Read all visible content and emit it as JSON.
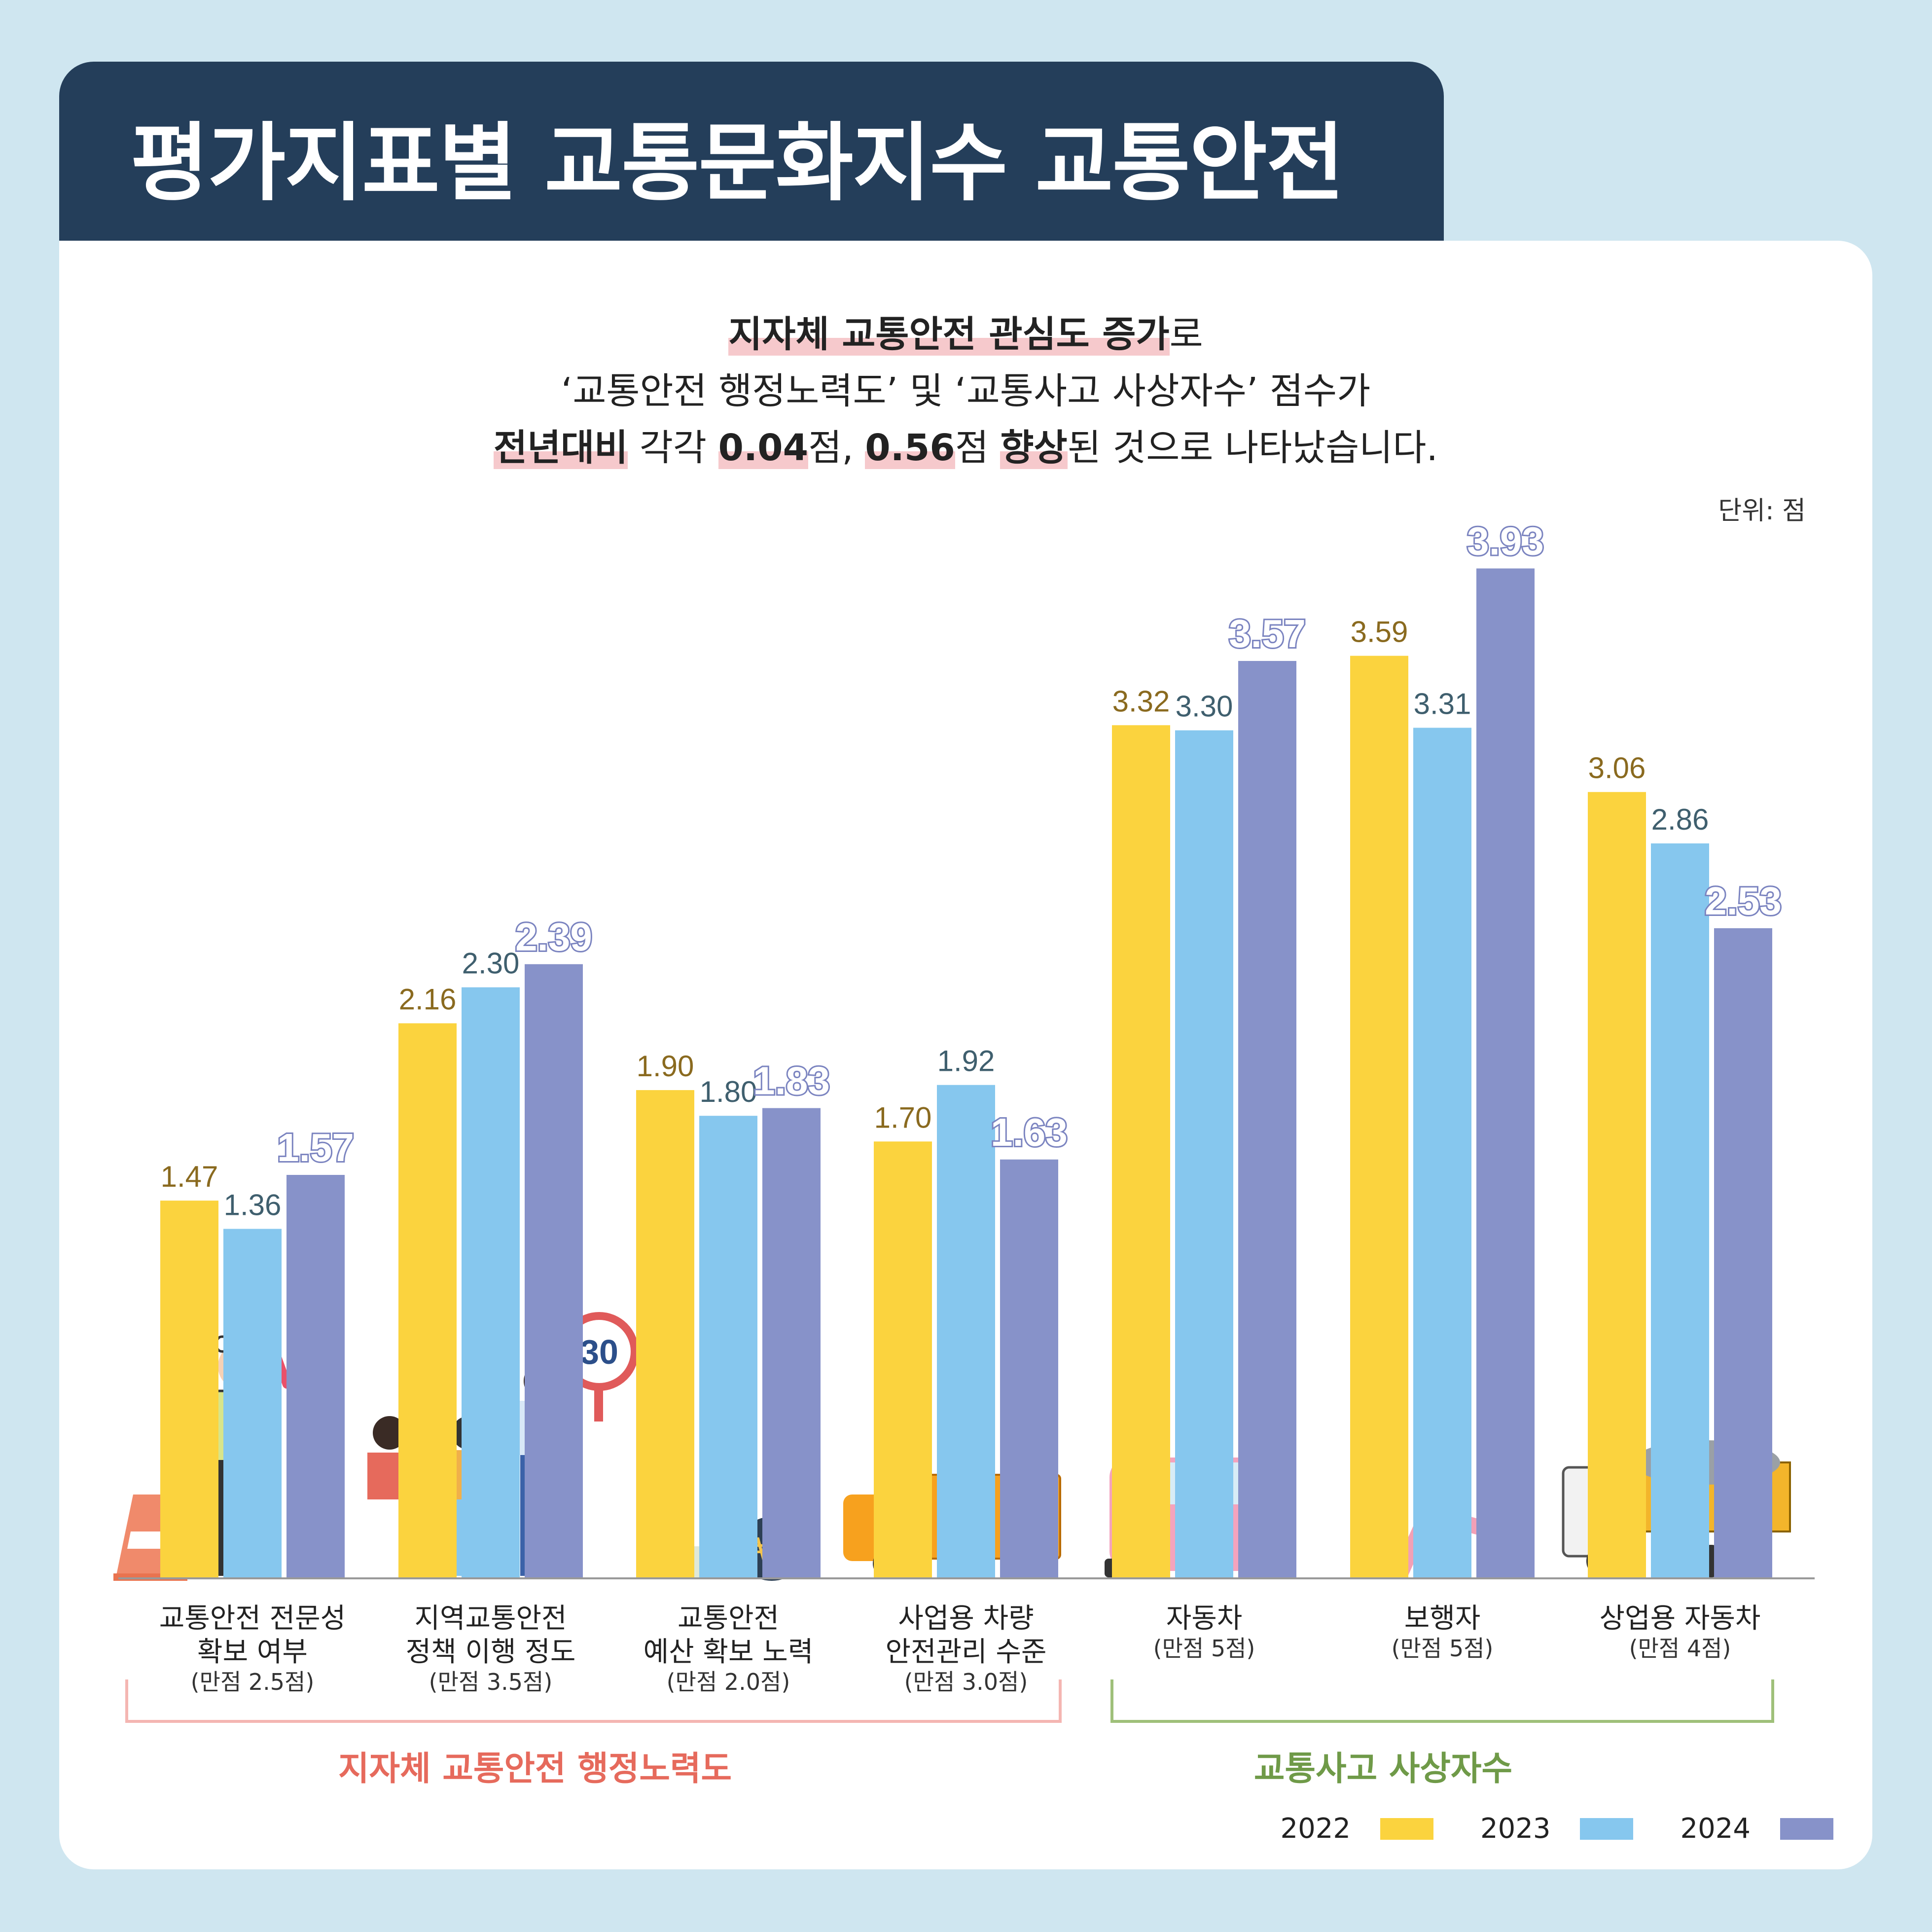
{
  "title": "평가지표별 교통문화지수 교통안전",
  "intro": {
    "line1": {
      "bold": "지자체 교통안전 관심도 증가",
      "rest": "로"
    },
    "line2": "‘교통안전 행정노력도’ 및 ‘교통사고 사상자수’ 점수가",
    "line3": {
      "a": "전년대비",
      "b": " 각각 ",
      "c": "0.04",
      "d": "점, ",
      "e": "0.56",
      "f": "점 ",
      "g": "향상",
      "h": "된 것으로 나타났습니다."
    }
  },
  "unit": "단위: 점",
  "colors": {
    "y2022": "#fbd33e",
    "y2023": "#86c7ee",
    "y2024": "#8792c9",
    "label2022": "#8a6a1f",
    "label2023": "#3f5f6e",
    "label2024": "#7b84c0"
  },
  "chart_data": {
    "type": "bar",
    "categories": [
      {
        "name": [
          "교통안전 전문성",
          "확보 여부"
        ],
        "sub": "(만점 2.5점)"
      },
      {
        "name": [
          "지역교통안전",
          "정책 이행 정도"
        ],
        "sub": "(만점 3.5점)"
      },
      {
        "name": [
          "교통안전",
          "예산 확보 노력"
        ],
        "sub": "(만점 2.0점)"
      },
      {
        "name": [
          "사업용 차량",
          "안전관리 수준"
        ],
        "sub": "(만점 3.0점)"
      },
      {
        "name": [
          "자동차"
        ],
        "sub": "(만점 5점)"
      },
      {
        "name": [
          "보행자"
        ],
        "sub": "(만점 5점)"
      },
      {
        "name": [
          "상업용 자동차"
        ],
        "sub": "(만점 4점)"
      }
    ],
    "series": [
      {
        "name": "2022",
        "values": [
          "1.47",
          "2.16",
          "1.90",
          "1.70",
          "3.32",
          "3.59",
          "3.06"
        ]
      },
      {
        "name": "2023",
        "values": [
          "1.36",
          "2.30",
          "1.80",
          "1.92",
          "3.30",
          "3.31",
          "2.86"
        ]
      },
      {
        "name": "2024",
        "values": [
          "1.57",
          "2.39",
          "1.83",
          "1.63",
          "3.57",
          "3.93",
          "2.53"
        ]
      }
    ],
    "groups": [
      {
        "label": "지자체 교통안전 행정노력도",
        "color": "#e66a5c"
      },
      {
        "label": "교통사고 사상자수",
        "color": "#6f9a48"
      }
    ],
    "ylim": [
      0,
      4.2
    ]
  }
}
